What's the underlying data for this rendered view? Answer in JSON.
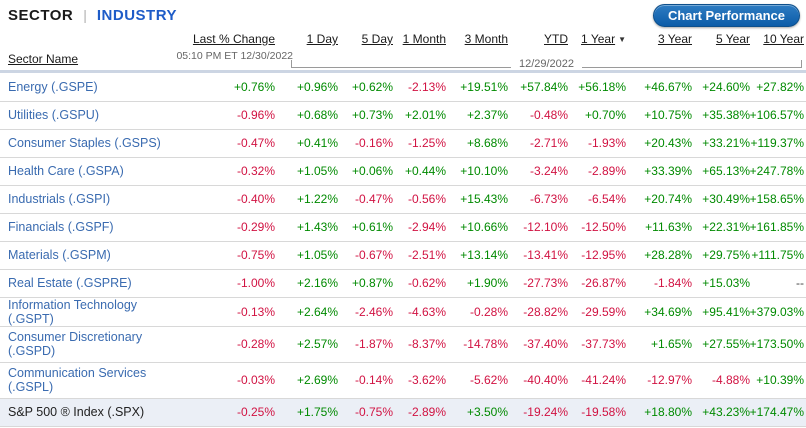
{
  "header": {
    "tab_sector": "SECTOR",
    "tab_separator": "|",
    "tab_industry": "INDUSTRY",
    "chart_performance_button": "Chart Performance"
  },
  "icons": {
    "sort_descending": "▼"
  },
  "colors": {
    "positive": "#008a00",
    "negative": "#d11242",
    "sector_link": "#3a6bb0",
    "industry_tab": "#1e5cc8",
    "button_top": "#2e7cc2",
    "button_bottom": "#0b5ca8",
    "summary_row_bg": "#ebeff6"
  },
  "table": {
    "sector_name_header": "Sector Name",
    "last_change_label": "Last % Change",
    "last_change_timestamp": "05:10 PM ET 12/30/2022",
    "close_date": "12/29/2022",
    "period_headers": [
      "1 Day",
      "5 Day",
      "1 Month",
      "3 Month",
      "YTD",
      "1 Year",
      "3 Year",
      "5 Year",
      "10 Year"
    ],
    "sorted_column": "1 Year",
    "rows": [
      {
        "name": "Energy",
        "symbol": "(.GSPE)",
        "two_line": false,
        "values": [
          "+0.76%",
          "+0.96%",
          "+0.62%",
          "-2.13%",
          "+19.51%",
          "+57.84%",
          "+56.18%",
          "+46.67%",
          "+24.60%",
          "+27.82%"
        ]
      },
      {
        "name": "Utilities",
        "symbol": "(.GSPU)",
        "two_line": false,
        "values": [
          "-0.96%",
          "+0.68%",
          "+0.73%",
          "+2.01%",
          "+2.37%",
          "-0.48%",
          "+0.70%",
          "+10.75%",
          "+35.38%",
          "+106.57%"
        ]
      },
      {
        "name": "Consumer Staples",
        "symbol": "(.GSPS)",
        "two_line": false,
        "values": [
          "-0.47%",
          "+0.41%",
          "-0.16%",
          "-1.25%",
          "+8.68%",
          "-2.71%",
          "-1.93%",
          "+20.43%",
          "+33.21%",
          "+119.37%"
        ]
      },
      {
        "name": "Health Care",
        "symbol": "(.GSPA)",
        "two_line": false,
        "values": [
          "-0.32%",
          "+1.05%",
          "+0.06%",
          "+0.44%",
          "+10.10%",
          "-3.24%",
          "-2.89%",
          "+33.39%",
          "+65.13%",
          "+247.78%"
        ]
      },
      {
        "name": "Industrials",
        "symbol": "(.GSPI)",
        "two_line": false,
        "values": [
          "-0.40%",
          "+1.22%",
          "-0.47%",
          "-0.56%",
          "+15.43%",
          "-6.73%",
          "-6.54%",
          "+20.74%",
          "+30.49%",
          "+158.65%"
        ]
      },
      {
        "name": "Financials",
        "symbol": "(.GSPF)",
        "two_line": false,
        "values": [
          "-0.29%",
          "+1.43%",
          "+0.61%",
          "-2.94%",
          "+10.66%",
          "-12.10%",
          "-12.50%",
          "+11.63%",
          "+22.31%",
          "+161.85%"
        ]
      },
      {
        "name": "Materials",
        "symbol": "(.GSPM)",
        "two_line": false,
        "values": [
          "-0.75%",
          "+1.05%",
          "-0.67%",
          "-2.51%",
          "+13.14%",
          "-13.41%",
          "-12.95%",
          "+28.28%",
          "+29.75%",
          "+111.75%"
        ]
      },
      {
        "name": "Real Estate",
        "symbol": "(.GSPRE)",
        "two_line": false,
        "values": [
          "-1.00%",
          "+2.16%",
          "+0.87%",
          "-0.62%",
          "+1.90%",
          "-27.73%",
          "-26.87%",
          "-1.84%",
          "+15.03%",
          "--"
        ]
      },
      {
        "name": "Information Technology",
        "symbol": "(.GSPT)",
        "two_line": false,
        "values": [
          "-0.13%",
          "+2.64%",
          "-2.46%",
          "-4.63%",
          "-0.28%",
          "-28.82%",
          "-29.59%",
          "+34.69%",
          "+95.41%",
          "+379.03%"
        ]
      },
      {
        "name": "Consumer Discretionary",
        "symbol": "(.GSPD)",
        "two_line": true,
        "values": [
          "-0.28%",
          "+2.57%",
          "-1.87%",
          "-8.37%",
          "-14.78%",
          "-37.40%",
          "-37.73%",
          "+1.65%",
          "+27.55%",
          "+173.50%"
        ]
      },
      {
        "name": "Communication Services",
        "symbol": "(.GSPL)",
        "two_line": true,
        "values": [
          "-0.03%",
          "+2.69%",
          "-0.14%",
          "-3.62%",
          "-5.62%",
          "-40.40%",
          "-41.24%",
          "-12.97%",
          "-4.88%",
          "+10.39%"
        ]
      }
    ],
    "summary": {
      "name": "S&P 500 ® Index (.SPX)",
      "values": [
        "-0.25%",
        "+1.75%",
        "-0.75%",
        "-2.89%",
        "+3.50%",
        "-19.24%",
        "-19.58%",
        "+18.80%",
        "+43.23%",
        "+174.47%"
      ]
    }
  }
}
